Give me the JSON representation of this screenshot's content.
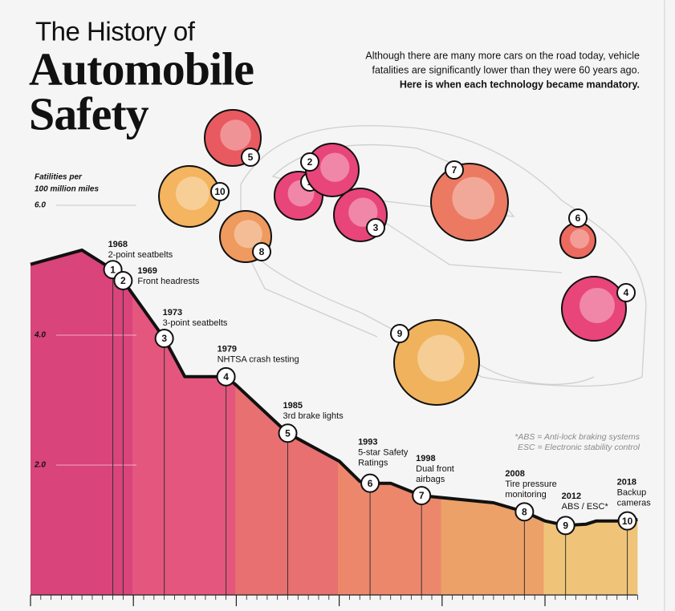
{
  "header": {
    "title_line1": "The History of",
    "title_line2": "Automobile",
    "title_line3": "Safety",
    "subtitle_lines": [
      "Although there are many more cars on the road today, vehicle",
      "fatalities are significantly lower than they were 60 years ago."
    ],
    "subtitle_bold": "Here  is when each technology became mandatory."
  },
  "chart_data": {
    "type": "area",
    "y_label": [
      "Fatilities per",
      "100 million miles"
    ],
    "x": [
      1960,
      1965,
      1968,
      1969,
      1973,
      1975,
      1979,
      1980,
      1985,
      1990,
      1992,
      1993,
      1995,
      1998,
      2005,
      2008,
      2010,
      2012,
      2014,
      2015,
      2018,
      2019
    ],
    "values": [
      5.09,
      5.31,
      5.01,
      4.84,
      3.95,
      3.36,
      3.36,
      3.23,
      2.49,
      2.06,
      1.75,
      1.72,
      1.72,
      1.53,
      1.42,
      1.28,
      1.14,
      1.07,
      1.09,
      1.14,
      1.14,
      1.16
    ],
    "color": "#111111",
    "xlim": [
      1960,
      2019
    ],
    "ylim": [
      0,
      6
    ],
    "xticks": [
      1960,
      1970,
      1980,
      1990,
      2000,
      2010
    ],
    "yticks": [
      {
        "value": 2,
        "label": "2.0"
      },
      {
        "value": 4,
        "label": "4.0"
      },
      {
        "value": 6,
        "label": "6.0"
      }
    ],
    "milestones": [
      {
        "number": 1,
        "year": 1968,
        "label": [
          "2-point seatbelts"
        ]
      },
      {
        "number": 2,
        "year": 1969,
        "label": [
          "Front headrests"
        ]
      },
      {
        "number": 3,
        "year": 1973,
        "label": [
          "3-point seatbelts"
        ]
      },
      {
        "number": 4,
        "year": 1979,
        "label": [
          "NHTSA crash testing"
        ]
      },
      {
        "number": 5,
        "year": 1985,
        "label": [
          "3rd brake lights"
        ]
      },
      {
        "number": 6,
        "year": 1993,
        "label": [
          "5-star Safety",
          "Ratings"
        ]
      },
      {
        "number": 7,
        "year": 1998,
        "label": [
          "Dual front",
          "airbags"
        ]
      },
      {
        "number": 8,
        "year": 2008,
        "label": [
          "Tire pressure",
          "monitoring"
        ]
      },
      {
        "number": 9,
        "year": 2012,
        "label": [
          "ABS / ESC*"
        ]
      },
      {
        "number": 10,
        "year": 2018,
        "label": [
          "Backup",
          "cameras"
        ]
      }
    ],
    "footnotes": [
      "*ABS = Anti-lock braking systems",
      "ESC = Electronic stability control"
    ]
  }
}
